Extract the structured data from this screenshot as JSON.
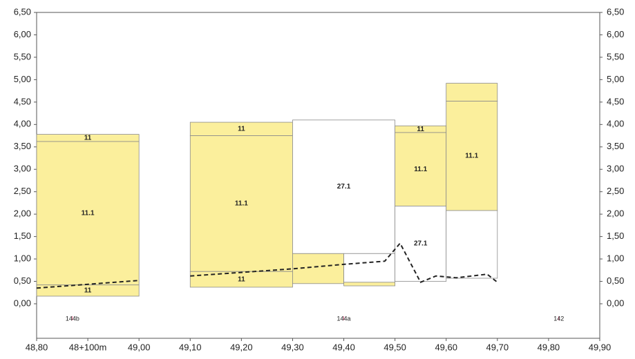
{
  "chart_data": {
    "type": "profile",
    "xlim": [
      48.8,
      49.9
    ],
    "ylim": [
      -0.77,
      6.5
    ],
    "xticks": [
      {
        "value": 48.8,
        "label": "48,80"
      },
      {
        "value": 48.9,
        "label": "48+100m"
      },
      {
        "value": 49.0,
        "label": "49,00"
      },
      {
        "value": 49.1,
        "label": "49,10"
      },
      {
        "value": 49.2,
        "label": "49,20"
      },
      {
        "value": 49.3,
        "label": "49,30"
      },
      {
        "value": 49.4,
        "label": "49,40"
      },
      {
        "value": 49.5,
        "label": "49,50"
      },
      {
        "value": 49.6,
        "label": "49,60"
      },
      {
        "value": 49.7,
        "label": "49,70"
      },
      {
        "value": 49.8,
        "label": "49,80"
      },
      {
        "value": 49.9,
        "label": "49,90"
      }
    ],
    "yticks": [
      {
        "value": 0,
        "label": "0,00"
      },
      {
        "value": 0.5,
        "label": "0,50"
      },
      {
        "value": 1,
        "label": "1,00"
      },
      {
        "value": 1.5,
        "label": "1,50"
      },
      {
        "value": 2,
        "label": "2,00"
      },
      {
        "value": 2.5,
        "label": "2,50"
      },
      {
        "value": 3,
        "label": "3,00"
      },
      {
        "value": 3.5,
        "label": "3,50"
      },
      {
        "value": 4,
        "label": "4,00"
      },
      {
        "value": 4.5,
        "label": "4,50"
      },
      {
        "value": 5,
        "label": "5,00"
      },
      {
        "value": 5.5,
        "label": "5,50"
      },
      {
        "value": 6,
        "label": "6,00"
      },
      {
        "value": 6.5,
        "label": "6,50"
      }
    ],
    "layers": [
      {
        "x": [
          48.8,
          49.0
        ],
        "y": [
          3.62,
          3.78
        ],
        "label": "11",
        "color": "#fbef9c"
      },
      {
        "x": [
          48.8,
          49.0
        ],
        "y": [
          0.42,
          3.62
        ],
        "label": "11.1",
        "color": "#fbef9c"
      },
      {
        "x": [
          48.8,
          49.0
        ],
        "y": [
          0.17,
          0.42
        ],
        "label": "11",
        "color": "#fbef9c"
      },
      {
        "x": [
          49.1,
          49.3
        ],
        "y": [
          3.75,
          4.05
        ],
        "label": "11",
        "color": "#fbef9c"
      },
      {
        "x": [
          49.1,
          49.3
        ],
        "y": [
          0.72,
          3.75
        ],
        "label": "11.1",
        "color": "#fbef9c"
      },
      {
        "x": [
          49.1,
          49.3
        ],
        "y": [
          0.37,
          0.72
        ],
        "label": "11",
        "color": "#fbef9c"
      },
      {
        "x": [
          49.3,
          49.5
        ],
        "y": [
          1.12,
          4.1
        ],
        "label": "27.1",
        "color": "#ffffff"
      },
      {
        "x": [
          49.3,
          49.4
        ],
        "y": [
          0.45,
          1.12
        ],
        "color": "#fbef9c"
      },
      {
        "x": [
          49.4,
          49.5
        ],
        "y": [
          0.48,
          1.12
        ],
        "color": "#ffffff"
      },
      {
        "x": [
          49.4,
          49.5
        ],
        "y": [
          0.4,
          0.48
        ],
        "color": "#fbef9c"
      },
      {
        "x": [
          49.5,
          49.6
        ],
        "y": [
          3.82,
          3.97
        ],
        "label": "11",
        "color": "#fbef9c"
      },
      {
        "x": [
          49.5,
          49.6
        ],
        "y": [
          2.18,
          3.82
        ],
        "label": "11.1",
        "color": "#fbef9c"
      },
      {
        "x": [
          49.5,
          49.6
        ],
        "y": [
          0.5,
          2.18
        ],
        "label": "27.1",
        "color": "#ffffff"
      },
      {
        "x": [
          49.6,
          49.7
        ],
        "y": [
          4.52,
          4.92
        ],
        "color": "#fbef9c"
      },
      {
        "x": [
          49.6,
          49.7
        ],
        "y": [
          2.08,
          4.52
        ],
        "label": "11.1",
        "color": "#fbef9c"
      },
      {
        "x": [
          49.6,
          49.7
        ],
        "y": [
          0.57,
          2.08
        ],
        "color": "#ffffff"
      }
    ],
    "line": {
      "color": "#222222",
      "x": [
        48.8,
        49.0,
        null,
        49.1,
        49.3,
        49.4,
        49.48,
        49.51,
        49.55,
        49.58,
        49.62,
        49.68,
        49.7
      ],
      "values": [
        0.35,
        0.52,
        null,
        0.62,
        0.78,
        0.88,
        0.95,
        1.35,
        0.48,
        0.62,
        0.58,
        0.66,
        0.48
      ]
    },
    "markers": [
      {
        "x": 48.87,
        "label": "144b"
      },
      {
        "x": 49.4,
        "label": "144a"
      },
      {
        "x": 49.82,
        "label": "142"
      }
    ],
    "marker_color": "#e0507a"
  }
}
